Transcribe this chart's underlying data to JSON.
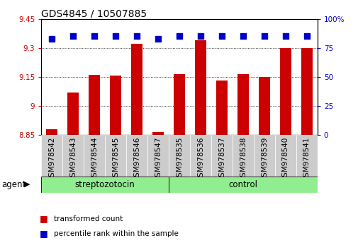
{
  "title": "GDS4845 / 10507885",
  "samples": [
    "GSM978542",
    "GSM978543",
    "GSM978544",
    "GSM978545",
    "GSM978546",
    "GSM978547",
    "GSM978535",
    "GSM978536",
    "GSM978537",
    "GSM978538",
    "GSM978539",
    "GSM978540",
    "GSM978541"
  ],
  "transformed_counts": [
    8.88,
    9.07,
    9.16,
    9.155,
    9.32,
    8.865,
    9.165,
    9.34,
    9.13,
    9.165,
    9.148,
    9.3,
    9.3
  ],
  "percentile_ranks": [
    83,
    85,
    85,
    85,
    85,
    83,
    85,
    85,
    85,
    85,
    85,
    85,
    85
  ],
  "ylim_left": [
    8.85,
    9.45
  ],
  "ylim_right": [
    0,
    100
  ],
  "yticks_left": [
    8.85,
    9.0,
    9.15,
    9.3,
    9.45
  ],
  "yticks_right": [
    0,
    25,
    50,
    75,
    100
  ],
  "ytick_labels_left": [
    "8.85",
    "9",
    "9.15",
    "9.3",
    "9.45"
  ],
  "ytick_labels_right": [
    "0",
    "25",
    "50",
    "75",
    "100%"
  ],
  "groups": [
    {
      "label": "streptozotocin",
      "start": 0,
      "end": 6,
      "color": "#90EE90"
    },
    {
      "label": "control",
      "start": 6,
      "end": 13,
      "color": "#90EE90"
    }
  ],
  "bar_color": "#CC0000",
  "dot_color": "#0000CC",
  "bar_width": 0.55,
  "background_color": "#ffffff",
  "agent_label": "agent",
  "legend_items": [
    {
      "label": "transformed count",
      "color": "#CC0000"
    },
    {
      "label": "percentile rank within the sample",
      "color": "#0000CC"
    }
  ],
  "title_fontsize": 10,
  "tick_fontsize": 7.5,
  "label_fontsize": 8.5
}
